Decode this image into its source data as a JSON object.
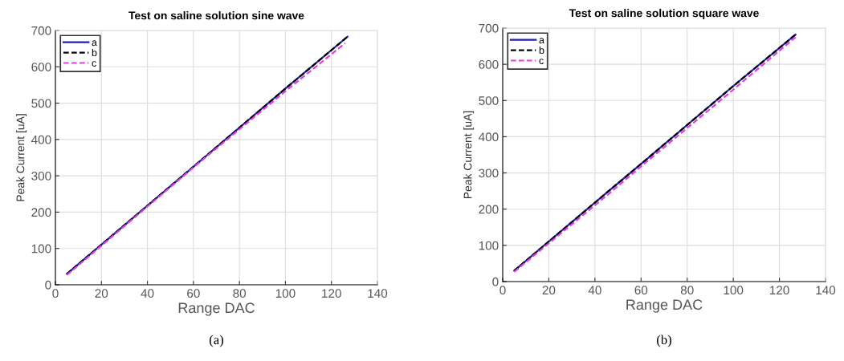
{
  "chart_data": [
    {
      "type": "line",
      "title": "Test on saline solution sine wave",
      "xlabel": "Range DAC",
      "ylabel": "Peak Current [uA]",
      "xlim": [
        0,
        140
      ],
      "ylim": [
        0,
        700
      ],
      "xticks": [
        0,
        20,
        40,
        60,
        80,
        100,
        120,
        140
      ],
      "yticks": [
        0,
        100,
        200,
        300,
        400,
        500,
        600,
        700
      ],
      "grid": true,
      "legend": "top left",
      "marker": "none",
      "annotations": [
        "(a)"
      ],
      "series": [
        {
          "name": "a",
          "color": "#2020b0",
          "line_style": "solid",
          "x": [
            5,
            60,
            100,
            127
          ],
          "values": [
            30,
            325,
            540,
            683
          ]
        },
        {
          "name": "b",
          "color": "#000000",
          "line_style": "dashed",
          "x": [
            5,
            60,
            100,
            127
          ],
          "values": [
            30,
            325,
            540,
            683
          ]
        },
        {
          "name": "c",
          "color": "#e040e0",
          "line_style": "dashed",
          "x": [
            5,
            60,
            100,
            126
          ],
          "values": [
            27,
            323,
            533,
            665
          ]
        }
      ]
    },
    {
      "type": "line",
      "title": "Test on saline solution square wave",
      "xlabel": "Range DAC",
      "ylabel": "Peak Current [uA]",
      "xlim": [
        0,
        140
      ],
      "ylim": [
        0,
        700
      ],
      "xticks": [
        0,
        20,
        40,
        60,
        80,
        100,
        120,
        140
      ],
      "yticks": [
        0,
        100,
        200,
        300,
        400,
        500,
        600,
        700
      ],
      "grid": true,
      "legend": "top left",
      "marker": "none",
      "annotations": [
        "(b)"
      ],
      "series": [
        {
          "name": "a",
          "color": "#2020b0",
          "line_style": "solid",
          "x": [
            5,
            45,
            60,
            100,
            127
          ],
          "values": [
            30,
            245,
            325,
            540,
            682
          ]
        },
        {
          "name": "b",
          "color": "#000000",
          "line_style": "dashed",
          "x": [
            5,
            45,
            60,
            100,
            127
          ],
          "values": [
            30,
            245,
            325,
            540,
            682
          ]
        },
        {
          "name": "c",
          "color": "#e040e0",
          "line_style": "dashed",
          "x": [
            5,
            45,
            60,
            100,
            127
          ],
          "values": [
            27,
            237,
            318,
            530,
            675
          ]
        }
      ]
    }
  ]
}
